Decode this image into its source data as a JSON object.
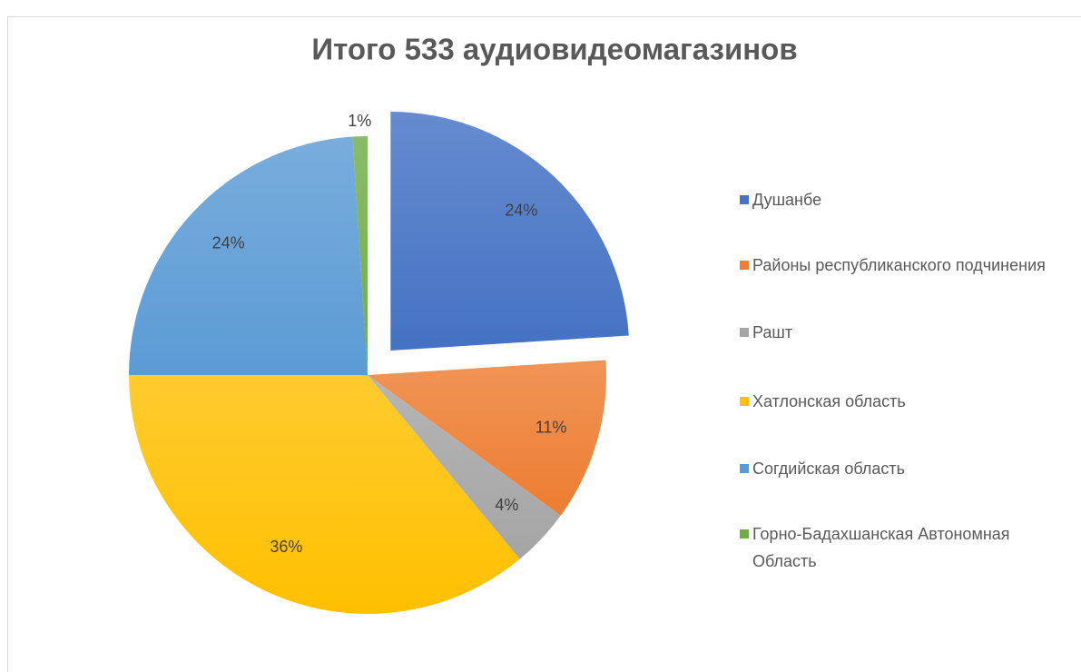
{
  "chart_data": {
    "type": "pie",
    "title": "Итого 533 аудиовидеомагазинов",
    "categories": [
      "Душанбе",
      "Районы республиканского подчинения",
      "Рашт",
      "Хатлонская область",
      "Согдийская область",
      "Горно-Бадахшанская Автономная Область"
    ],
    "values": [
      24,
      11,
      4,
      36,
      24,
      1
    ],
    "value_labels": [
      "24%",
      "11%",
      "4%",
      "36%",
      "24%",
      "1%"
    ],
    "colors": [
      "#4472c4",
      "#ed7d31",
      "#a5a5a5",
      "#ffc000",
      "#5b9bd5",
      "#70ad47"
    ],
    "exploded": [
      0
    ],
    "legend": "right"
  }
}
